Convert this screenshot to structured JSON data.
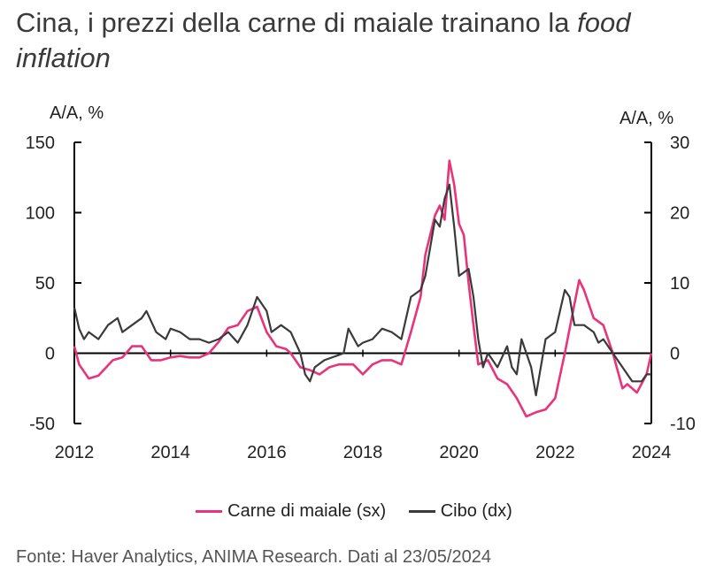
{
  "title_plain": "Cina, i prezzi della carne di maiale trainano la ",
  "title_italic": "food inflation",
  "source": "Fonte: Haver Analytics, ANIMA Research.  Dati al 23/05/2024",
  "colors": {
    "pork": "#e8347a",
    "food": "#3a3a3a",
    "axis": "#000000"
  },
  "chart_data": {
    "type": "line",
    "title": "Cina, i prezzi della carne di maiale trainano la food inflation",
    "xlabel": "",
    "ylabel": "A/A, %",
    "y2label": "A/A, %",
    "xlim": [
      2012,
      2024
    ],
    "ylim": [
      -50,
      150
    ],
    "y2lim": [
      -10,
      30
    ],
    "x_ticks": [
      "2012",
      "2014",
      "2016",
      "2018",
      "2020",
      "2022",
      "2024"
    ],
    "y_ticks": [
      "150",
      "100",
      "50",
      "0",
      "-50"
    ],
    "y2_ticks": [
      "30",
      "20",
      "10",
      "0",
      "-10"
    ],
    "legend": [
      "Carne di maiale (sx)",
      "Cibo (dx)"
    ],
    "series": [
      {
        "name": "Carne di maiale (sx)",
        "axis": "left",
        "x": [
          2012.0,
          2012.1,
          2012.3,
          2012.5,
          2012.8,
          2013.0,
          2013.2,
          2013.4,
          2013.6,
          2013.8,
          2014.0,
          2014.2,
          2014.4,
          2014.6,
          2014.8,
          2015.0,
          2015.2,
          2015.4,
          2015.6,
          2015.8,
          2016.0,
          2016.2,
          2016.4,
          2016.5,
          2016.7,
          2016.9,
          2017.1,
          2017.3,
          2017.5,
          2017.8,
          2018.0,
          2018.2,
          2018.4,
          2018.6,
          2018.8,
          2019.0,
          2019.2,
          2019.3,
          2019.5,
          2019.6,
          2019.7,
          2019.8,
          2019.9,
          2020.0,
          2020.1,
          2020.2,
          2020.3,
          2020.4,
          2020.6,
          2020.8,
          2021.0,
          2021.2,
          2021.4,
          2021.6,
          2021.8,
          2022.0,
          2022.2,
          2022.4,
          2022.5,
          2022.6,
          2022.8,
          2023.0,
          2023.2,
          2023.4,
          2023.5,
          2023.7,
          2023.9,
          2024.0
        ],
        "values": [
          5,
          -8,
          -18,
          -16,
          -5,
          -3,
          5,
          5,
          -5,
          -5,
          -3,
          -2,
          -3,
          -3,
          0,
          8,
          18,
          20,
          30,
          33,
          15,
          5,
          3,
          0,
          -10,
          -12,
          -15,
          -10,
          -8,
          -8,
          -15,
          -8,
          -5,
          -5,
          -8,
          15,
          40,
          70,
          98,
          105,
          95,
          137,
          120,
          92,
          84,
          50,
          20,
          -8,
          -5,
          -18,
          -22,
          -32,
          -45,
          -42,
          -40,
          -32,
          0,
          35,
          52,
          45,
          25,
          20,
          0,
          -25,
          -22,
          -28,
          -15,
          0
        ]
      },
      {
        "name": "Cibo (dx)",
        "axis": "right",
        "x": [
          2012.0,
          2012.1,
          2012.2,
          2012.3,
          2012.5,
          2012.7,
          2012.9,
          2013.0,
          2013.2,
          2013.4,
          2013.5,
          2013.7,
          2013.9,
          2014.0,
          2014.2,
          2014.4,
          2014.6,
          2014.8,
          2015.0,
          2015.2,
          2015.4,
          2015.6,
          2015.8,
          2016.0,
          2016.1,
          2016.3,
          2016.5,
          2016.7,
          2016.8,
          2016.9,
          2017.0,
          2017.2,
          2017.4,
          2017.6,
          2017.7,
          2017.9,
          2018.0,
          2018.2,
          2018.4,
          2018.6,
          2018.8,
          2019.0,
          2019.2,
          2019.3,
          2019.5,
          2019.6,
          2019.7,
          2019.8,
          2019.9,
          2020.0,
          2020.2,
          2020.3,
          2020.4,
          2020.5,
          2020.6,
          2020.7,
          2020.8,
          2021.0,
          2021.1,
          2021.2,
          2021.3,
          2021.5,
          2021.6,
          2021.8,
          2022.0,
          2022.2,
          2022.3,
          2022.4,
          2022.6,
          2022.8,
          2022.9,
          2023.0,
          2023.2,
          2023.4,
          2023.6,
          2023.8,
          2023.9,
          2024.0
        ],
        "values": [
          6.5,
          3.5,
          2,
          3,
          2,
          4,
          5,
          3,
          4,
          5,
          6,
          3,
          2,
          3.5,
          3,
          2,
          2,
          1.5,
          2,
          3,
          1.5,
          4,
          8,
          6,
          3,
          4,
          3,
          0,
          -3,
          -4,
          -2,
          -1,
          -0.5,
          0,
          3.5,
          1,
          1.5,
          2,
          3.5,
          3,
          2,
          8,
          9,
          11,
          19,
          18,
          22,
          24,
          18,
          11,
          12,
          8,
          2,
          -2,
          0,
          -1,
          -2,
          1,
          -2,
          -3,
          2,
          -2,
          -6,
          2,
          3,
          9,
          8,
          4,
          4,
          3,
          1.5,
          2,
          0,
          -2,
          -4,
          -4,
          -3,
          -3
        ]
      }
    ]
  }
}
